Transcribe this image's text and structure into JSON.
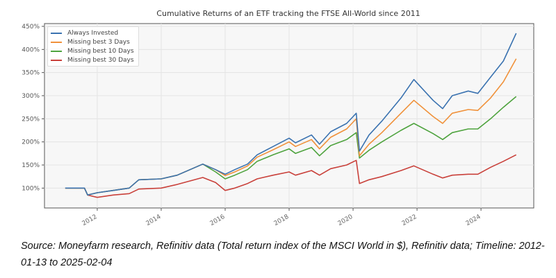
{
  "chart_data": {
    "type": "line",
    "title": "Cumulative Returns of an ETF tracking the FTSE All-World since 2011",
    "xlabel": "",
    "ylabel": "",
    "xlim": [
      2010.35,
      2025.65
    ],
    "ylim": [
      57,
      456
    ],
    "grid": true,
    "legend_position": "top-left",
    "x_ticks": [
      "2012",
      "2014",
      "2016",
      "2018",
      "2020",
      "2022",
      "2024"
    ],
    "x_tick_values": [
      2012,
      2014,
      2016,
      2018,
      2020,
      2022,
      2024
    ],
    "y_ticks": [
      "100%",
      "150%",
      "200%",
      "250%",
      "300%",
      "350%",
      "400%",
      "450%"
    ],
    "y_tick_values": [
      100,
      150,
      200,
      250,
      300,
      350,
      400,
      450
    ],
    "x": [
      2011.0,
      2011.6,
      2011.7,
      2012.0,
      2012.5,
      2013.0,
      2013.3,
      2014.0,
      2014.5,
      2015.3,
      2015.7,
      2016.0,
      2016.3,
      2016.7,
      2017.0,
      2017.5,
      2018.0,
      2018.2,
      2018.7,
      2018.95,
      2019.3,
      2019.8,
      2020.1,
      2020.2,
      2020.5,
      2020.9,
      2021.5,
      2021.9,
      2022.5,
      2022.8,
      2023.1,
      2023.6,
      2023.9,
      2024.3,
      2024.7,
      2025.1
    ],
    "series": [
      {
        "name": "Always Invested",
        "color": "#3a72b0",
        "values": [
          100,
          100,
          85,
          90,
          95,
          100,
          118,
          120,
          128,
          152,
          140,
          130,
          140,
          152,
          172,
          190,
          208,
          198,
          215,
          195,
          222,
          240,
          262,
          180,
          215,
          245,
          295,
          335,
          290,
          272,
          300,
          310,
          305,
          340,
          375,
          435
        ]
      },
      {
        "name": "Missing best 3 Days",
        "color": "#f0913a",
        "values": [
          100,
          100,
          85,
          90,
          95,
          100,
          118,
          120,
          128,
          152,
          140,
          127,
          135,
          148,
          167,
          183,
          200,
          190,
          205,
          185,
          210,
          228,
          250,
          170,
          195,
          220,
          262,
          290,
          255,
          240,
          262,
          270,
          268,
          295,
          330,
          380
        ]
      },
      {
        "name": "Missing best 10 Days",
        "color": "#4ea33e",
        "values": [
          100,
          100,
          85,
          90,
          95,
          100,
          118,
          120,
          128,
          152,
          135,
          120,
          128,
          140,
          158,
          172,
          185,
          175,
          188,
          170,
          192,
          205,
          220,
          165,
          182,
          200,
          225,
          240,
          218,
          205,
          220,
          228,
          228,
          250,
          275,
          298
        ]
      },
      {
        "name": "Missing best 30 Days",
        "color": "#c9403a",
        "values": [
          100,
          100,
          85,
          80,
          85,
          88,
          98,
          100,
          108,
          123,
          112,
          95,
          100,
          110,
          120,
          128,
          135,
          128,
          138,
          128,
          142,
          150,
          160,
          110,
          118,
          125,
          138,
          148,
          130,
          122,
          128,
          130,
          130,
          145,
          158,
          172
        ]
      }
    ]
  },
  "source": "Source: Moneyfarm research, Refinitiv data (Total return index of the MSCI World in $), Refinitiv data; Timeline: 2012-01-13 to 2025-02-04"
}
